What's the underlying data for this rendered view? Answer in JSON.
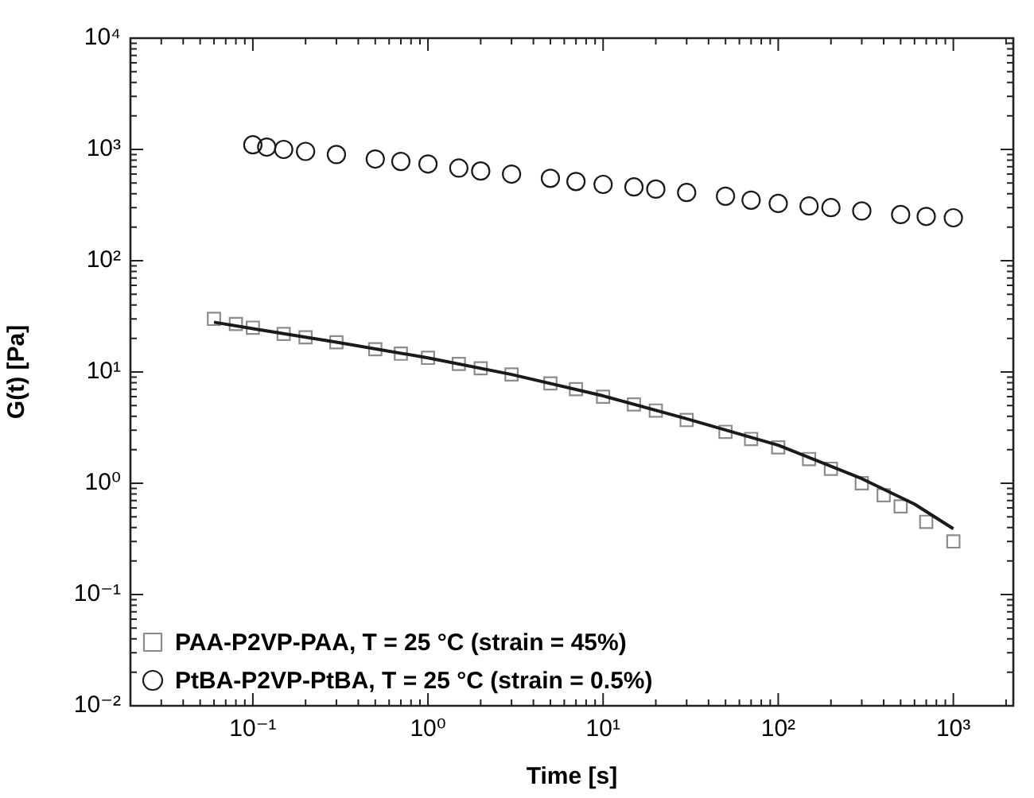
{
  "chart_data": {
    "type": "scatter",
    "xlabel": "Time [s]",
    "ylabel": "G(t) [Pa]",
    "log": "xy",
    "grid": false,
    "legend": "bottom left",
    "xlim": [
      0.02,
      2200
    ],
    "ylim": [
      0.01,
      10000
    ],
    "xticks": [
      {
        "value": 0.02,
        "label": null
      },
      {
        "value": 0.03,
        "label": null
      },
      {
        "value": 0.04,
        "label": null
      },
      {
        "value": 0.05,
        "label": null
      },
      {
        "value": 0.06,
        "label": null
      },
      {
        "value": 0.07,
        "label": null
      },
      {
        "value": 0.08,
        "label": null
      },
      {
        "value": 0.09,
        "label": null
      },
      {
        "value": 0.1,
        "label": "10⁻¹"
      },
      {
        "value": 0.2,
        "label": null
      },
      {
        "value": 0.3,
        "label": null
      },
      {
        "value": 0.4,
        "label": null
      },
      {
        "value": 0.5,
        "label": null
      },
      {
        "value": 0.6,
        "label": null
      },
      {
        "value": 0.7,
        "label": null
      },
      {
        "value": 0.8,
        "label": null
      },
      {
        "value": 0.9,
        "label": null
      },
      {
        "value": 1,
        "label": "10⁰"
      },
      {
        "value": 2,
        "label": null
      },
      {
        "value": 3,
        "label": null
      },
      {
        "value": 4,
        "label": null
      },
      {
        "value": 5,
        "label": null
      },
      {
        "value": 6,
        "label": null
      },
      {
        "value": 7,
        "label": null
      },
      {
        "value": 8,
        "label": null
      },
      {
        "value": 9,
        "label": null
      },
      {
        "value": 10,
        "label": "10¹"
      },
      {
        "value": 20,
        "label": null
      },
      {
        "value": 30,
        "label": null
      },
      {
        "value": 40,
        "label": null
      },
      {
        "value": 50,
        "label": null
      },
      {
        "value": 60,
        "label": null
      },
      {
        "value": 70,
        "label": null
      },
      {
        "value": 80,
        "label": null
      },
      {
        "value": 90,
        "label": null
      },
      {
        "value": 100,
        "label": "10²"
      },
      {
        "value": 200,
        "label": null
      },
      {
        "value": 300,
        "label": null
      },
      {
        "value": 400,
        "label": null
      },
      {
        "value": 500,
        "label": null
      },
      {
        "value": 600,
        "label": null
      },
      {
        "value": 700,
        "label": null
      },
      {
        "value": 800,
        "label": null
      },
      {
        "value": 900,
        "label": null
      },
      {
        "value": 1000,
        "label": "10³"
      },
      {
        "value": 2000,
        "label": null
      }
    ],
    "yticks": [
      {
        "value": 0.01,
        "label": "10⁻²"
      },
      {
        "value": 0.02,
        "label": null
      },
      {
        "value": 0.03,
        "label": null
      },
      {
        "value": 0.04,
        "label": null
      },
      {
        "value": 0.05,
        "label": null
      },
      {
        "value": 0.06,
        "label": null
      },
      {
        "value": 0.07,
        "label": null
      },
      {
        "value": 0.08,
        "label": null
      },
      {
        "value": 0.09,
        "label": null
      },
      {
        "value": 0.1,
        "label": "10⁻¹"
      },
      {
        "value": 0.2,
        "label": null
      },
      {
        "value": 0.3,
        "label": null
      },
      {
        "value": 0.4,
        "label": null
      },
      {
        "value": 0.5,
        "label": null
      },
      {
        "value": 0.6,
        "label": null
      },
      {
        "value": 0.7,
        "label": null
      },
      {
        "value": 0.8,
        "label": null
      },
      {
        "value": 0.9,
        "label": null
      },
      {
        "value": 1,
        "label": "10⁰"
      },
      {
        "value": 2,
        "label": null
      },
      {
        "value": 3,
        "label": null
      },
      {
        "value": 4,
        "label": null
      },
      {
        "value": 5,
        "label": null
      },
      {
        "value": 6,
        "label": null
      },
      {
        "value": 7,
        "label": null
      },
      {
        "value": 8,
        "label": null
      },
      {
        "value": 9,
        "label": null
      },
      {
        "value": 10,
        "label": "10¹"
      },
      {
        "value": 20,
        "label": null
      },
      {
        "value": 30,
        "label": null
      },
      {
        "value": 40,
        "label": null
      },
      {
        "value": 50,
        "label": null
      },
      {
        "value": 60,
        "label": null
      },
      {
        "value": 70,
        "label": null
      },
      {
        "value": 80,
        "label": null
      },
      {
        "value": 90,
        "label": null
      },
      {
        "value": 100,
        "label": "10²"
      },
      {
        "value": 200,
        "label": null
      },
      {
        "value": 300,
        "label": null
      },
      {
        "value": 400,
        "label": null
      },
      {
        "value": 500,
        "label": null
      },
      {
        "value": 600,
        "label": null
      },
      {
        "value": 700,
        "label": null
      },
      {
        "value": 800,
        "label": null
      },
      {
        "value": 900,
        "label": null
      },
      {
        "value": 1000,
        "label": "10³"
      },
      {
        "value": 2000,
        "label": null
      },
      {
        "value": 3000,
        "label": null
      },
      {
        "value": 4000,
        "label": null
      },
      {
        "value": 5000,
        "label": null
      },
      {
        "value": 6000,
        "label": null
      },
      {
        "value": 7000,
        "label": null
      },
      {
        "value": 8000,
        "label": null
      },
      {
        "value": 9000,
        "label": null
      },
      {
        "value": 10000,
        "label": "10⁴"
      }
    ],
    "series": [
      {
        "name": "PAA-P2VP-PAA, T = 25 °C (strain = 45%)",
        "color": "#8c8c8c",
        "marker": "square",
        "x": [
          0.06,
          0.08,
          0.1,
          0.15,
          0.2,
          0.3,
          0.5,
          0.7,
          1,
          1.5,
          2,
          3,
          5,
          7,
          10,
          15,
          20,
          30,
          50,
          70,
          100,
          150,
          200,
          300,
          400,
          500,
          700,
          1000
        ],
        "values": [
          30,
          27,
          25,
          22,
          20.5,
          18.5,
          16,
          14.6,
          13.4,
          11.8,
          10.8,
          9.5,
          7.9,
          7,
          6,
          5.1,
          4.5,
          3.7,
          2.9,
          2.5,
          2.1,
          1.65,
          1.35,
          1,
          0.78,
          0.62,
          0.45,
          0.3
        ]
      },
      {
        "name": "PtBA-P2VP-PtBA, T = 25 °C (strain = 0.5%)",
        "color": "#1a1a1a",
        "marker": "circle",
        "x": [
          0.1,
          0.12,
          0.15,
          0.2,
          0.3,
          0.5,
          0.7,
          1,
          1.5,
          2,
          3,
          5,
          7,
          10,
          15,
          20,
          30,
          50,
          70,
          100,
          150,
          200,
          300,
          500,
          700,
          1000
        ],
        "values": [
          1100,
          1050,
          1000,
          960,
          900,
          820,
          780,
          740,
          680,
          640,
          600,
          550,
          515,
          485,
          460,
          440,
          410,
          380,
          350,
          327,
          310,
          300,
          280,
          260,
          250,
          243
        ]
      },
      {
        "type": "line",
        "color": "#1a1a1a",
        "marker": "none",
        "x": [
          0.06,
          0.1,
          0.3,
          1,
          3,
          10,
          30,
          100,
          300,
          600,
          1000
        ],
        "values": [
          28,
          24.5,
          18.5,
          13.4,
          9.5,
          6.1,
          3.8,
          2.2,
          1.1,
          0.65,
          0.39
        ]
      }
    ]
  }
}
